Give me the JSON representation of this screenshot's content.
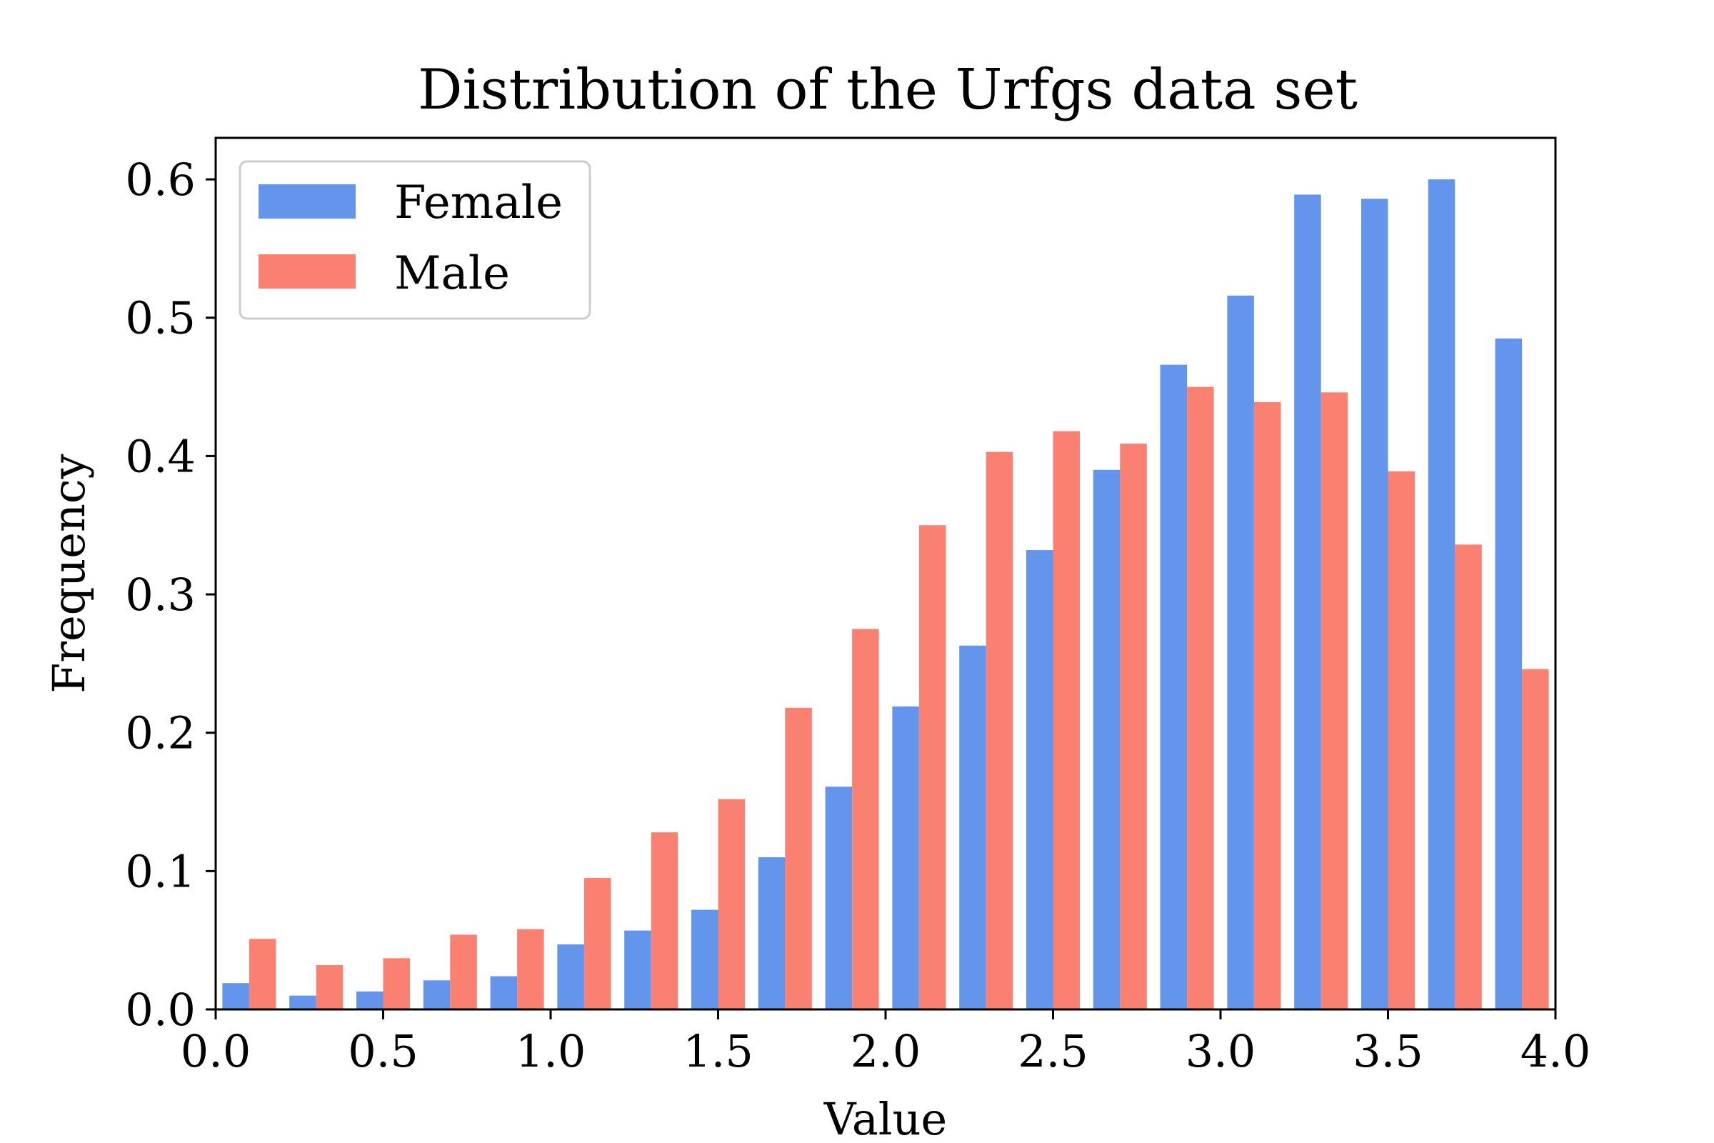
{
  "chart_data": {
    "type": "bar",
    "title": "Distribution of the Urfgs data set",
    "xlabel": "Value",
    "ylabel": "Frequency",
    "xlim": [
      0.0,
      4.0
    ],
    "ylim": [
      0.0,
      0.63
    ],
    "xticks": [
      "0.0",
      "0.5",
      "1.0",
      "1.5",
      "2.0",
      "2.5",
      "3.0",
      "3.5",
      "4.0"
    ],
    "yticks": [
      "0.0",
      "0.1",
      "0.2",
      "0.3",
      "0.4",
      "0.5",
      "0.6"
    ],
    "bin_edges": [
      0.0,
      0.2,
      0.4,
      0.6,
      0.8,
      1.0,
      1.2,
      1.4,
      1.6,
      1.8,
      2.0,
      2.2,
      2.4,
      2.6,
      2.8,
      3.0,
      3.2,
      3.4,
      3.6,
      3.8,
      4.0
    ],
    "grid": false,
    "legend_position": "upper-left",
    "series": [
      {
        "name": "Female",
        "color": "#6495ED",
        "values": [
          0.019,
          0.01,
          0.013,
          0.021,
          0.024,
          0.047,
          0.057,
          0.072,
          0.11,
          0.161,
          0.219,
          0.263,
          0.332,
          0.39,
          0.466,
          0.516,
          0.589,
          0.586,
          0.6,
          0.485
        ]
      },
      {
        "name": "Male",
        "color": "#FA8072",
        "values": [
          0.051,
          0.032,
          0.037,
          0.054,
          0.058,
          0.095,
          0.128,
          0.152,
          0.218,
          0.275,
          0.35,
          0.403,
          0.418,
          0.409,
          0.45,
          0.439,
          0.446,
          0.389,
          0.336,
          0.246
        ]
      }
    ]
  }
}
